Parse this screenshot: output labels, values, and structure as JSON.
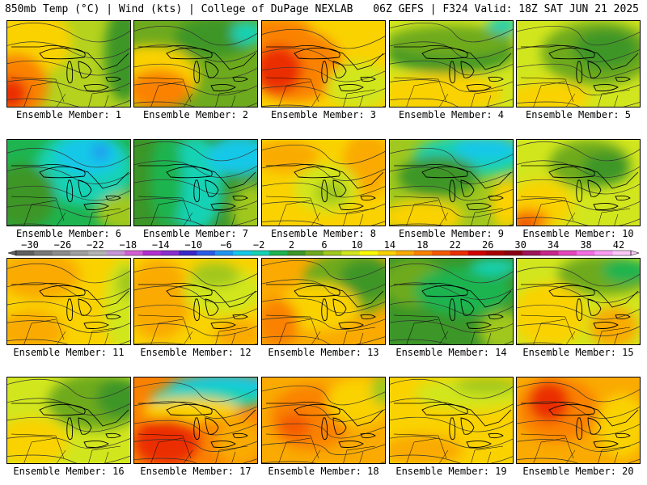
{
  "header": {
    "left": "850mb Temp (°C) | Wind (kts) | College of DuPage NEXLAB",
    "right": "06Z GEFS | F324 Valid: 18Z SAT JUN 21 2025"
  },
  "colorbar": {
    "labels": [
      "-30",
      "-26",
      "-22",
      "-18",
      "-14",
      "-10",
      "-6",
      "-2",
      "2",
      "6",
      "10",
      "14",
      "18",
      "22",
      "26",
      "30",
      "34",
      "38",
      "42"
    ],
    "colors": [
      "#5f5f5f",
      "#787878",
      "#8c8c8c",
      "#a0a0a0",
      "#b4b4b4",
      "#c896d8",
      "#d55fd5",
      "#b42fd0",
      "#8a2fd0",
      "#3a28c8",
      "#2a5ce8",
      "#1e96f0",
      "#14c8e8",
      "#14d2b4",
      "#1eb450",
      "#3c9628",
      "#6eaa1e",
      "#a0c81e",
      "#d2e61e",
      "#fafa00",
      "#fad200",
      "#faaa00",
      "#fa8200",
      "#f55a00",
      "#eb2d00",
      "#d20000",
      "#aa0000",
      "#8c0014",
      "#a0145a",
      "#c8288c",
      "#e646be",
      "#f56ee6",
      "#fa9bf5",
      "#fcc8fa"
    ]
  },
  "panels": [
    {
      "label": "Ensemble Member: 1",
      "base": "#b4d21e",
      "fills": [
        {
          "c": "#fad200",
          "x": 20,
          "y": 25,
          "rx": 60,
          "ry": 45
        },
        {
          "c": "#fa8200",
          "x": 10,
          "y": 80,
          "rx": 40,
          "ry": 40
        },
        {
          "c": "#eb2d00",
          "x": 5,
          "y": 90,
          "rx": 20,
          "ry": 20
        },
        {
          "c": "#3c9628",
          "x": 145,
          "y": 40,
          "rx": 25,
          "ry": 60
        }
      ]
    },
    {
      "label": "Ensemble Member: 2",
      "base": "#6eaa1e",
      "fills": [
        {
          "c": "#fad200",
          "x": 20,
          "y": 70,
          "rx": 60,
          "ry": 40
        },
        {
          "c": "#fa8200",
          "x": 30,
          "y": 85,
          "rx": 40,
          "ry": 25
        },
        {
          "c": "#3c9628",
          "x": 100,
          "y": 20,
          "rx": 50,
          "ry": 25
        },
        {
          "c": "#14d2b4",
          "x": 140,
          "y": 15,
          "rx": 20,
          "ry": 15
        }
      ]
    },
    {
      "label": "Ensemble Member: 3",
      "base": "#fad200",
      "fills": [
        {
          "c": "#fa8200",
          "x": 40,
          "y": 55,
          "rx": 60,
          "ry": 45
        },
        {
          "c": "#eb2d00",
          "x": 20,
          "y": 60,
          "rx": 30,
          "ry": 30
        },
        {
          "c": "#fa8200",
          "x": 20,
          "y": 10,
          "rx": 40,
          "ry": 15
        },
        {
          "c": "#d2e61e",
          "x": 120,
          "y": 80,
          "rx": 40,
          "ry": 30
        }
      ]
    },
    {
      "label": "Ensemble Member: 4",
      "base": "#d2e61e",
      "fills": [
        {
          "c": "#3c9628",
          "x": 75,
          "y": 40,
          "rx": 80,
          "ry": 25
        },
        {
          "c": "#6eaa1e",
          "x": 75,
          "y": 25,
          "rx": 80,
          "ry": 20
        },
        {
          "c": "#fad200",
          "x": 60,
          "y": 90,
          "rx": 80,
          "ry": 25
        },
        {
          "c": "#14d2b4",
          "x": 140,
          "y": 5,
          "rx": 20,
          "ry": 10
        }
      ]
    },
    {
      "label": "Ensemble Member: 5",
      "base": "#d2e61e",
      "fills": [
        {
          "c": "#6eaa1e",
          "x": 100,
          "y": 40,
          "rx": 70,
          "ry": 40
        },
        {
          "c": "#3c9628",
          "x": 110,
          "y": 35,
          "rx": 40,
          "ry": 25
        },
        {
          "c": "#fad200",
          "x": 40,
          "y": 95,
          "rx": 50,
          "ry": 20
        }
      ]
    },
    {
      "label": "Ensemble Member: 6",
      "base": "#1eb450",
      "fills": [
        {
          "c": "#14d2b4",
          "x": 95,
          "y": 35,
          "rx": 60,
          "ry": 45
        },
        {
          "c": "#14c8e8",
          "x": 100,
          "y": 20,
          "rx": 40,
          "ry": 25
        },
        {
          "c": "#1e96f0",
          "x": 115,
          "y": 15,
          "rx": 10,
          "ry": 10
        },
        {
          "c": "#3c9628",
          "x": 20,
          "y": 70,
          "rx": 40,
          "ry": 40
        },
        {
          "c": "#a0c81e",
          "x": 150,
          "y": 90,
          "rx": 40,
          "ry": 25
        }
      ]
    },
    {
      "label": "Ensemble Member: 7",
      "base": "#3c9628",
      "fills": [
        {
          "c": "#14d2b4",
          "x": 75,
          "y": 55,
          "rx": 35,
          "ry": 60
        },
        {
          "c": "#14c8e8",
          "x": 130,
          "y": 20,
          "rx": 40,
          "ry": 25
        },
        {
          "c": "#a0c81e",
          "x": 145,
          "y": 90,
          "rx": 25,
          "ry": 35
        },
        {
          "c": "#1eb450",
          "x": 40,
          "y": 50,
          "rx": 20,
          "ry": 60
        }
      ]
    },
    {
      "label": "Ensemble Member: 8",
      "base": "#fad200",
      "fills": [
        {
          "c": "#faaa00",
          "x": 30,
          "y": 20,
          "rx": 40,
          "ry": 20
        },
        {
          "c": "#faaa00",
          "x": 130,
          "y": 30,
          "rx": 30,
          "ry": 40
        },
        {
          "c": "#d2e61e",
          "x": 80,
          "y": 60,
          "rx": 40,
          "ry": 30
        },
        {
          "c": "#a0c81e",
          "x": 85,
          "y": 65,
          "rx": 20,
          "ry": 15
        }
      ]
    },
    {
      "label": "Ensemble Member: 9",
      "base": "#a0c81e",
      "fills": [
        {
          "c": "#14d2b4",
          "x": 100,
          "y": 20,
          "rx": 70,
          "ry": 25
        },
        {
          "c": "#3c9628",
          "x": 60,
          "y": 45,
          "rx": 50,
          "ry": 25
        },
        {
          "c": "#14c8e8",
          "x": 120,
          "y": 10,
          "rx": 40,
          "ry": 15
        },
        {
          "c": "#fad200",
          "x": 40,
          "y": 95,
          "rx": 50,
          "ry": 20
        },
        {
          "c": "#fad200",
          "x": 145,
          "y": 80,
          "rx": 20,
          "ry": 30
        }
      ]
    },
    {
      "label": "Ensemble Member: 10",
      "base": "#d2e61e",
      "fills": [
        {
          "c": "#6eaa1e",
          "x": 90,
          "y": 30,
          "rx": 50,
          "ry": 30
        },
        {
          "c": "#3c9628",
          "x": 110,
          "y": 35,
          "rx": 30,
          "ry": 20
        },
        {
          "c": "#fad200",
          "x": 30,
          "y": 80,
          "rx": 40,
          "ry": 30
        },
        {
          "c": "#fa8200",
          "x": 15,
          "y": 100,
          "rx": 25,
          "ry": 15
        },
        {
          "c": "#eb2d00",
          "x": 10,
          "y": 105,
          "rx": 12,
          "ry": 8
        }
      ]
    },
    {
      "label": "Ensemble Member: 11",
      "base": "#fad200",
      "fills": [
        {
          "c": "#faaa00",
          "x": 40,
          "y": 20,
          "rx": 50,
          "ry": 30
        },
        {
          "c": "#faaa00",
          "x": 30,
          "y": 90,
          "rx": 40,
          "ry": 25
        },
        {
          "c": "#d2e61e",
          "x": 145,
          "y": 60,
          "rx": 25,
          "ry": 60
        },
        {
          "c": "#a0c81e",
          "x": 150,
          "y": 30,
          "rx": 15,
          "ry": 20
        }
      ]
    },
    {
      "label": "Ensemble Member: 12",
      "base": "#fad200",
      "fills": [
        {
          "c": "#faaa00",
          "x": 30,
          "y": 50,
          "rx": 40,
          "ry": 50
        },
        {
          "c": "#d2e61e",
          "x": 110,
          "y": 40,
          "rx": 50,
          "ry": 30
        },
        {
          "c": "#a0c81e",
          "x": 100,
          "y": 20,
          "rx": 30,
          "ry": 15
        },
        {
          "c": "#faaa00",
          "x": 130,
          "y": 95,
          "rx": 30,
          "ry": 20
        }
      ]
    },
    {
      "label": "Ensemble Member: 13",
      "base": "#faaa00",
      "fills": [
        {
          "c": "#6eaa1e",
          "x": 110,
          "y": 30,
          "rx": 60,
          "ry": 40
        },
        {
          "c": "#3c9628",
          "x": 130,
          "y": 25,
          "rx": 35,
          "ry": 25
        },
        {
          "c": "#fad200",
          "x": 70,
          "y": 60,
          "rx": 50,
          "ry": 30
        },
        {
          "c": "#fa8200",
          "x": 20,
          "y": 80,
          "rx": 25,
          "ry": 30
        }
      ]
    },
    {
      "label": "Ensemble Member: 14",
      "base": "#3c9628",
      "fills": [
        {
          "c": "#6eaa1e",
          "x": 30,
          "y": 30,
          "rx": 40,
          "ry": 30
        },
        {
          "c": "#1eb450",
          "x": 90,
          "y": 40,
          "rx": 60,
          "ry": 30
        },
        {
          "c": "#a0c81e",
          "x": 140,
          "y": 90,
          "rx": 30,
          "ry": 25
        },
        {
          "c": "#14d2b4",
          "x": 130,
          "y": 10,
          "rx": 30,
          "ry": 10
        }
      ]
    },
    {
      "label": "Ensemble Member: 15",
      "base": "#d2e61e",
      "fills": [
        {
          "c": "#6eaa1e",
          "x": 110,
          "y": 20,
          "rx": 60,
          "ry": 25
        },
        {
          "c": "#1eb450",
          "x": 135,
          "y": 15,
          "rx": 30,
          "ry": 15
        },
        {
          "c": "#fad200",
          "x": 40,
          "y": 70,
          "rx": 45,
          "ry": 40
        },
        {
          "c": "#faaa00",
          "x": 120,
          "y": 85,
          "rx": 30,
          "ry": 25
        }
      ]
    },
    {
      "label": "Ensemble Member: 16",
      "base": "#d2e61e",
      "fills": [
        {
          "c": "#6eaa1e",
          "x": 110,
          "y": 30,
          "rx": 60,
          "ry": 35
        },
        {
          "c": "#3c9628",
          "x": 140,
          "y": 25,
          "rx": 30,
          "ry": 25
        },
        {
          "c": "#fad200",
          "x": 30,
          "y": 80,
          "rx": 45,
          "ry": 30
        }
      ]
    },
    {
      "label": "Ensemble Member: 17",
      "base": "#fa8200",
      "fills": [
        {
          "c": "#14c8e8",
          "x": 110,
          "y": 15,
          "rx": 70,
          "ry": 20
        },
        {
          "c": "#14d2b4",
          "x": 90,
          "y": 25,
          "rx": 70,
          "ry": 15
        },
        {
          "c": "#fad200",
          "x": 70,
          "y": 40,
          "rx": 60,
          "ry": 15
        },
        {
          "c": "#eb2d00",
          "x": 40,
          "y": 80,
          "rx": 40,
          "ry": 30
        },
        {
          "c": "#faaa00",
          "x": 130,
          "y": 80,
          "rx": 30,
          "ry": 30
        }
      ]
    },
    {
      "label": "Ensemble Member: 18",
      "base": "#faaa00",
      "fills": [
        {
          "c": "#fa8200",
          "x": 60,
          "y": 50,
          "rx": 50,
          "ry": 40
        },
        {
          "c": "#fad200",
          "x": 120,
          "y": 30,
          "rx": 40,
          "ry": 30
        },
        {
          "c": "#a0c81e",
          "x": 150,
          "y": 15,
          "rx": 15,
          "ry": 20
        },
        {
          "c": "#f55a00",
          "x": 40,
          "y": 60,
          "rx": 20,
          "ry": 15
        }
      ]
    },
    {
      "label": "Ensemble Member: 19",
      "base": "#fad200",
      "fills": [
        {
          "c": "#d2e61e",
          "x": 100,
          "y": 20,
          "rx": 70,
          "ry": 20
        },
        {
          "c": "#a0c81e",
          "x": 120,
          "y": 10,
          "rx": 40,
          "ry": 10
        },
        {
          "c": "#faaa00",
          "x": 40,
          "y": 90,
          "rx": 50,
          "ry": 20
        }
      ]
    },
    {
      "label": "Ensemble Member: 20",
      "base": "#faaa00",
      "fills": [
        {
          "c": "#fa8200",
          "x": 50,
          "y": 40,
          "rx": 50,
          "ry": 40
        },
        {
          "c": "#eb2d00",
          "x": 40,
          "y": 30,
          "rx": 25,
          "ry": 25
        },
        {
          "c": "#fad200",
          "x": 130,
          "y": 60,
          "rx": 30,
          "ry": 40
        }
      ]
    }
  ]
}
